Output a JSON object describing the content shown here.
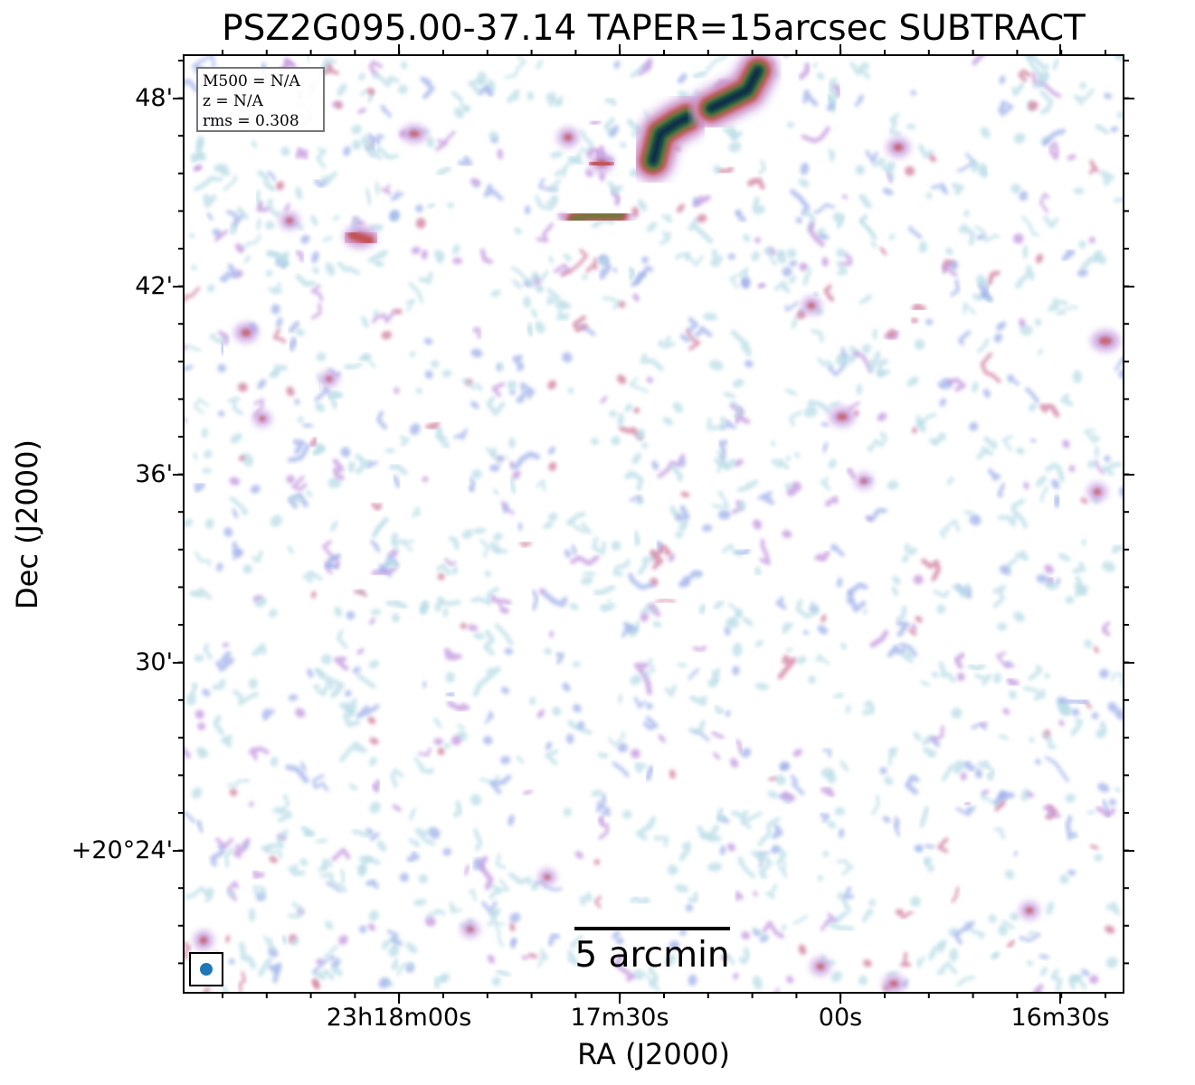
{
  "title": "PSZ2G095.00-37.14 TAPER=15arcsec SUBTRACT",
  "axes": {
    "xlabel": "RA (J2000)",
    "ylabel": "Dec (J2000)",
    "x_ticks": [
      "23h18m00s",
      "17m30s",
      "00s",
      "16m30s"
    ],
    "y_ticks": [
      "48'",
      "42'",
      "36'",
      "30'",
      "+20°24'"
    ]
  },
  "info": {
    "m500": "M500 = N/A",
    "z": "z = N/A",
    "rms": "rms = 0.308"
  },
  "scalebar": {
    "label": "5 arcmin"
  },
  "colors": {
    "noise_light": "#b9dde6",
    "noise_blue": "#9fb0ea",
    "noise_violet": "#c69be0",
    "noise_pink": "#d58aa8",
    "source_red": "#c0504f",
    "source_olive": "#6b7c3a",
    "source_green": "#1e5f3f",
    "source_core": "#0d2a4a",
    "beam": "#1f77b4"
  },
  "icons": {
    "beam": "beam-ellipse-icon"
  }
}
